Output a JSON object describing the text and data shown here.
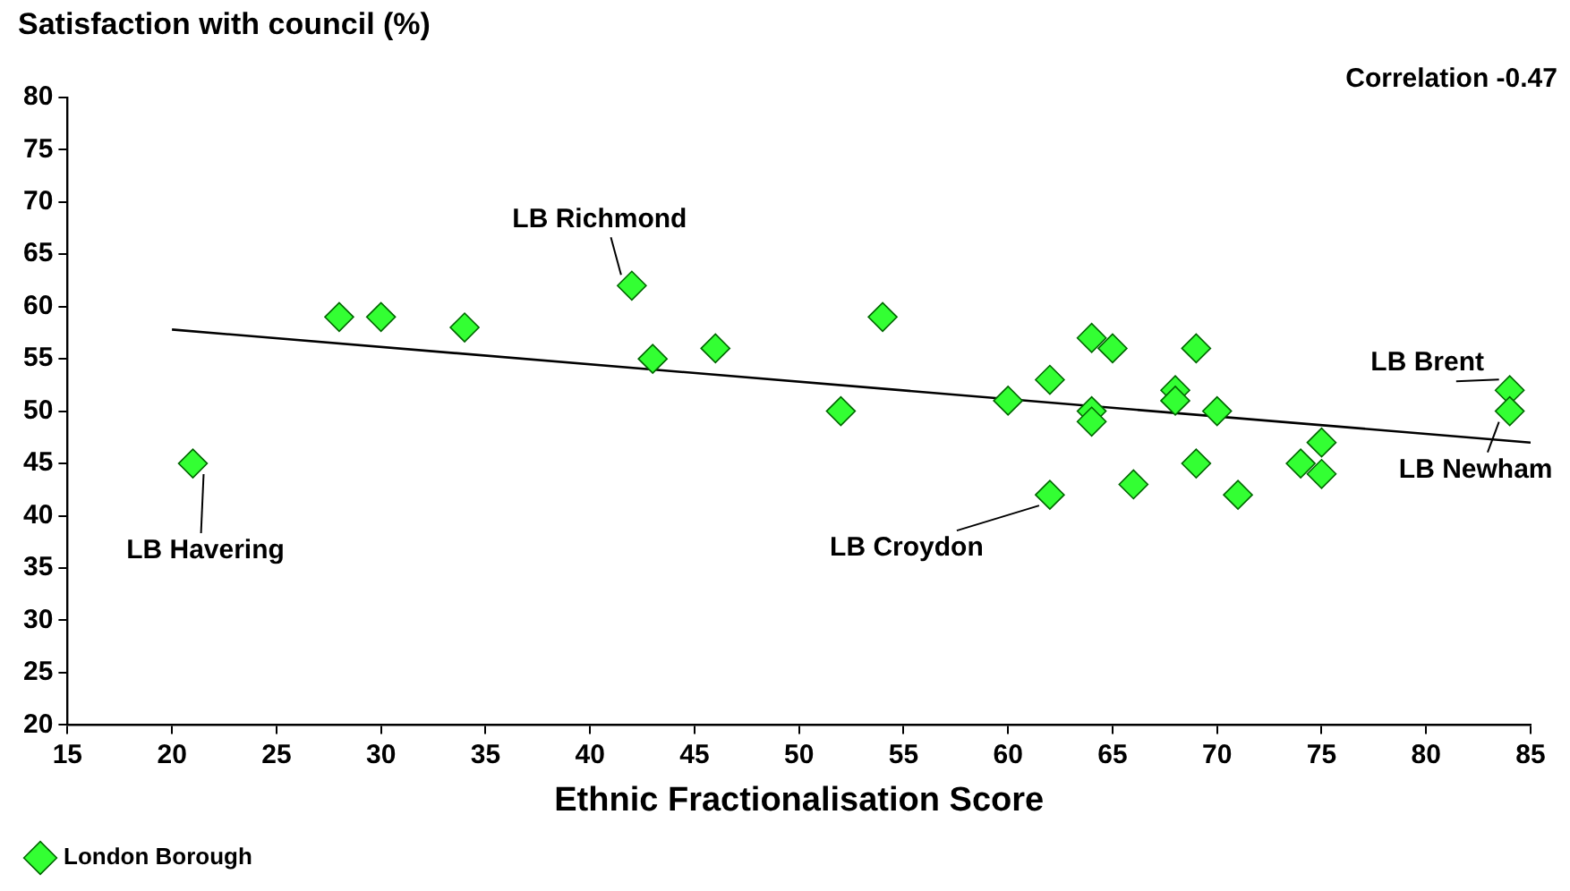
{
  "chart_data": {
    "type": "scatter",
    "ylabel": "Satisfaction with council (%)",
    "xlabel": "Ethnic Fractionalisation Score",
    "xlim": [
      15,
      85
    ],
    "xticks": [
      15,
      20,
      25,
      30,
      35,
      40,
      45,
      50,
      55,
      60,
      65,
      70,
      75,
      80,
      85
    ],
    "ylim": [
      20,
      80
    ],
    "yticks": [
      20,
      25,
      30,
      35,
      40,
      45,
      50,
      55,
      60,
      65,
      70,
      75,
      80
    ],
    "grid": false,
    "legend": "bottom left",
    "marker": "diamond",
    "series": [
      {
        "name": "London Borough",
        "color": "#33ff33",
        "x": [
          21,
          28,
          30,
          34,
          42,
          43,
          46,
          52,
          54,
          60,
          62,
          62,
          64,
          64,
          64,
          65,
          66,
          68,
          68,
          69,
          69,
          70,
          71,
          74,
          75,
          75,
          84,
          84
        ],
        "values": [
          45,
          59,
          59,
          58,
          62,
          55,
          56,
          50,
          59,
          51,
          53,
          42,
          57,
          50,
          49,
          56,
          43,
          52,
          51,
          56,
          45,
          50,
          42,
          45,
          47,
          44,
          52,
          50
        ]
      },
      {
        "color": "#000000",
        "type": "line",
        "marker": "none",
        "line_style": "solid",
        "x": [
          20,
          85
        ],
        "values": [
          57.8,
          47
        ]
      }
    ],
    "annotations": [
      {
        "text": "LB Richmond",
        "x": 42,
        "y": 62
      },
      {
        "text": "LB Havering",
        "x": 21,
        "y": 45
      },
      {
        "text": "LB Croydon",
        "x": 62,
        "y": 42
      },
      {
        "text": "LB Brent",
        "x": 84,
        "y": 52
      },
      {
        "text": "LB Newham",
        "x": 84,
        "y": 50
      },
      "Correlation -0.47"
    ]
  }
}
